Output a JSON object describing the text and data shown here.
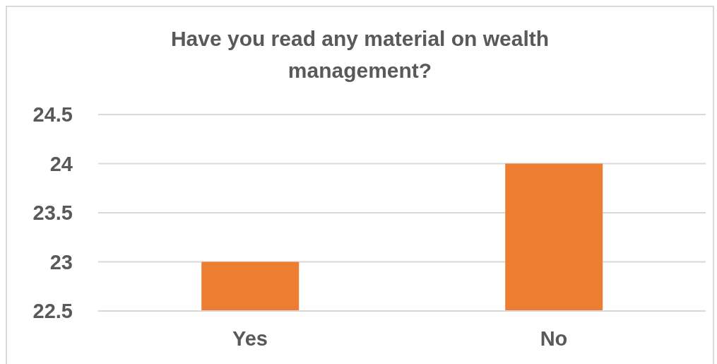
{
  "chart_data": {
    "type": "bar",
    "title": "Have you read any material on wealth management?",
    "categories": [
      "Yes",
      "No"
    ],
    "values": [
      23,
      24
    ],
    "color": "#ed7d31",
    "ylim": [
      22.5,
      24.5
    ],
    "yticks": [
      22.5,
      23,
      23.5,
      24,
      24.5
    ],
    "grid": "y",
    "legend": false
  }
}
